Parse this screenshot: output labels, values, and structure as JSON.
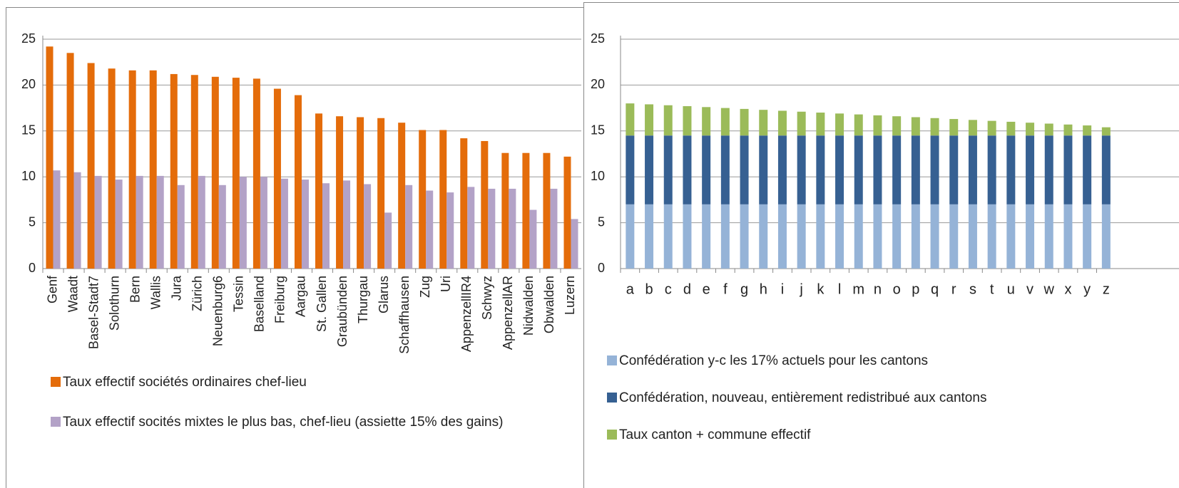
{
  "chart_data": [
    {
      "type": "bar",
      "categories": [
        "Genf",
        "Waadt",
        "Basel-Stadt7",
        "Solothurn",
        "Bern",
        "Wallis",
        "Jura",
        "Zürich",
        "Neuenburg6",
        "Tessin",
        "Baselland",
        "Freiburg",
        "Aargau",
        "St. Gallen",
        "Graubünden",
        "Thurgau",
        "Glarus",
        "Schaffhausen",
        "Zug",
        "Uri",
        "AppenzellIR4",
        "Schwyz",
        "AppenzellAR",
        "Nidwalden",
        "Obwalden",
        "Luzern"
      ],
      "series": [
        {
          "name": "Taux effectif sociétés ordinaires chef-lieu",
          "color": "#e46c0a",
          "values": [
            24.2,
            23.5,
            22.4,
            21.8,
            21.6,
            21.6,
            21.2,
            21.1,
            20.9,
            20.8,
            20.7,
            19.6,
            18.9,
            16.9,
            16.6,
            16.5,
            16.4,
            15.9,
            15.1,
            15.1,
            14.2,
            13.9,
            12.6,
            12.6,
            12.6,
            12.2
          ]
        },
        {
          "name": "Taux effectif socités mixtes le plus bas, chef-lieu (assiette 15% des gains)",
          "color": "#b3a2c7",
          "values": [
            10.7,
            10.5,
            10.1,
            9.7,
            10.1,
            10.1,
            9.1,
            10.1,
            9.1,
            10.0,
            10.0,
            9.8,
            9.7,
            9.3,
            9.6,
            9.2,
            6.1,
            9.1,
            8.5,
            8.3,
            8.9,
            8.7,
            8.7,
            6.4,
            8.7,
            5.4
          ]
        }
      ],
      "ylim": [
        0,
        25
      ],
      "yticks": [
        0,
        5,
        10,
        15,
        20,
        25
      ],
      "grid": true
    },
    {
      "type": "stacked_bar",
      "categories": [
        "a",
        "b",
        "c",
        "d",
        "e",
        "f",
        "g",
        "h",
        "i",
        "j",
        "k",
        "l",
        "m",
        "n",
        "o",
        "p",
        "q",
        "r",
        "s",
        "t",
        "u",
        "v",
        "w",
        "x",
        "y",
        "z"
      ],
      "series": [
        {
          "name": "Confédération y-c les 17% actuels pour les cantons",
          "color": "#95b3d7",
          "values": [
            7,
            7,
            7,
            7,
            7,
            7,
            7,
            7,
            7,
            7,
            7,
            7,
            7,
            7,
            7,
            7,
            7,
            7,
            7,
            7,
            7,
            7,
            7,
            7,
            7,
            7
          ]
        },
        {
          "name": "Confédération, nouveau,  entièrement redistribué aux cantons",
          "color": "#366092",
          "values": [
            7.5,
            7.5,
            7.5,
            7.5,
            7.5,
            7.5,
            7.5,
            7.5,
            7.5,
            7.5,
            7.5,
            7.5,
            7.5,
            7.5,
            7.5,
            7.5,
            7.5,
            7.5,
            7.5,
            7.5,
            7.5,
            7.5,
            7.5,
            7.5,
            7.5,
            7.5
          ]
        },
        {
          "name": "Taux canton + commune effectif",
          "color": "#9bbb59",
          "values": [
            3.5,
            3.4,
            3.3,
            3.2,
            3.1,
            3.0,
            2.9,
            2.8,
            2.7,
            2.6,
            2.5,
            2.4,
            2.3,
            2.2,
            2.1,
            2.0,
            1.9,
            1.8,
            1.7,
            1.6,
            1.5,
            1.4,
            1.3,
            1.2,
            1.1,
            0.9
          ]
        }
      ],
      "ylim": [
        0,
        25
      ],
      "yticks": [
        0,
        5,
        10,
        15,
        20,
        25
      ],
      "grid": true
    }
  ]
}
